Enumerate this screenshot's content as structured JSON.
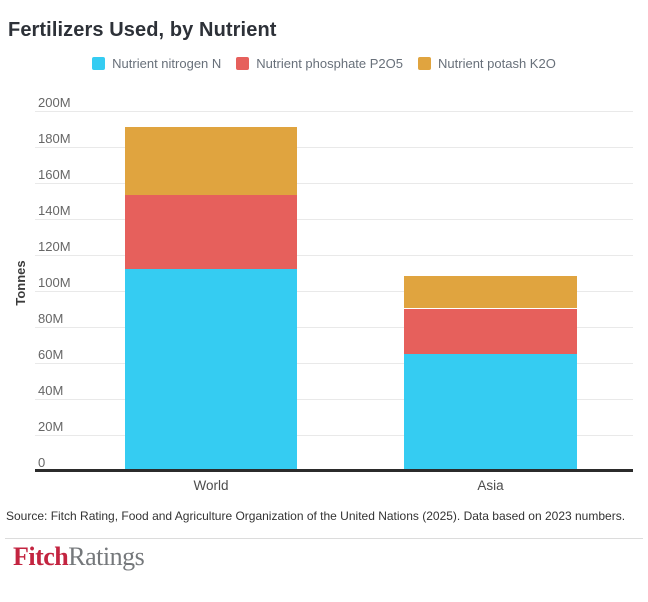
{
  "title": "Fertilizers Used, by Nutrient",
  "legend": [
    {
      "label": "Nutrient nitrogen N",
      "color": "#35CCF2"
    },
    {
      "label": "Nutrient phosphate P2O5",
      "color": "#E6605C"
    },
    {
      "label": "Nutrient potash K2O",
      "color": "#E0A43F"
    }
  ],
  "chart_data": {
    "type": "bar",
    "stacked": true,
    "title": "Fertilizers Used, by Nutrient",
    "categories": [
      "World",
      "Asia"
    ],
    "series": [
      {
        "key": "nitrogen",
        "name": "Nutrient nitrogen N",
        "color": "#35CCF2",
        "values": [
          112,
          65
        ]
      },
      {
        "key": "phosphate",
        "name": "Nutrient phosphate P2O5",
        "color": "#E6605C",
        "values": [
          41,
          25
        ]
      },
      {
        "key": "potash",
        "name": "Nutrient potash K2O",
        "color": "#E0A43F",
        "values": [
          38,
          18
        ]
      }
    ],
    "xlabel": "",
    "ylabel": "Tonnes",
    "ylim": [
      0,
      200
    ],
    "yticks": [
      0,
      20,
      40,
      60,
      80,
      100,
      120,
      140,
      160,
      180,
      200
    ],
    "ytick_labels": [
      "0",
      "20M",
      "40M",
      "60M",
      "80M",
      "100M",
      "120M",
      "140M",
      "160M",
      "180M",
      "200M"
    ],
    "grid": true,
    "legend_position": "top"
  },
  "source": "Source: Fitch Rating, Food and Agriculture Organization of the United Nations (2025). Data based on 2023 numbers.",
  "logo": {
    "fitch": "Fitch",
    "ratings": "Ratings"
  },
  "colors": {
    "nitrogen": "#35CCF2",
    "phosphate": "#E6605C",
    "potash": "#E0A43F",
    "axis_line": "#2b2b2b",
    "gridline": "#e9e9e9",
    "title_text": "#2d3138",
    "tick_text": "#666666",
    "legend_text": "#68707a",
    "logo_red": "#c32440",
    "logo_gray": "#75787b"
  }
}
